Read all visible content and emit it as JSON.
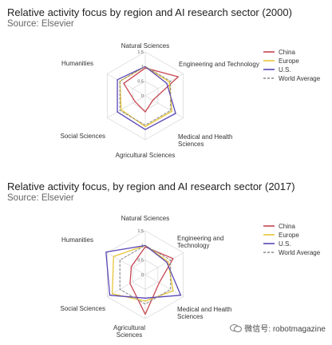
{
  "chart_data": [
    {
      "type": "radar",
      "title": "Relative activity focus by region and AI research sector (2000)",
      "source": "Source: Elsevier",
      "categories": [
        "Natural Sciences",
        "Engineering and Technology",
        "Medical and Health Sciences",
        "Agricultural Sciences",
        "Social Sciences",
        "Humanities"
      ],
      "category_lines": [
        [
          "Natural Sciences"
        ],
        [
          "Engineering and Technology"
        ],
        [
          "Medical and Health",
          "Sciences"
        ],
        [
          "Agricultural Sciences"
        ],
        [
          "Social Sciences"
        ],
        [
          "Humanities"
        ]
      ],
      "radial_ticks": [
        "0",
        "0.5",
        "1",
        "1.5"
      ],
      "rmax": 1.5,
      "series": [
        {
          "name": "China",
          "color": "#c8444f",
          "dash": false,
          "values": [
            0.95,
            1.3,
            0.3,
            0.55,
            0.4,
            0.85
          ]
        },
        {
          "name": "Europe",
          "color": "#e8c53a",
          "dash": false,
          "values": [
            1.0,
            0.95,
            1.05,
            1.05,
            0.95,
            1.0
          ]
        },
        {
          "name": "U.S.",
          "color": "#5a45b5",
          "dash": false,
          "values": [
            1.0,
            0.85,
            1.2,
            1.15,
            1.1,
            1.1
          ]
        },
        {
          "name": "World Average",
          "color": "#8a8a8a",
          "dash": true,
          "values": [
            1.0,
            1.0,
            1.0,
            1.0,
            1.0,
            1.0
          ]
        }
      ]
    },
    {
      "type": "radar",
      "title": "Relative activity focus, by region and AI research sector (2017)",
      "source": "Source: Elsevier",
      "categories": [
        "Natural Sciences",
        "Engineering and Technology",
        "Medical and Health Sciences",
        "Agricultural Sciences",
        "Social Sciences",
        "Humanities"
      ],
      "category_lines": [
        [
          "Natural Sciences"
        ],
        [
          "Engineering and",
          "Technology"
        ],
        [
          "Medical and Health",
          "Sciences"
        ],
        [
          "Agricultural",
          "Sciences"
        ],
        [
          "Social Sciences"
        ],
        [
          "Humanities"
        ]
      ],
      "radial_ticks": [
        "0",
        "0.5",
        "1",
        "1.5"
      ],
      "rmax": 1.5,
      "series": [
        {
          "name": "China",
          "color": "#c8444f",
          "dash": false,
          "values": [
            0.95,
            1.1,
            0.55,
            1.35,
            0.6,
            0.55
          ]
        },
        {
          "name": "Europe",
          "color": "#e8c53a",
          "dash": false,
          "values": [
            1.0,
            0.9,
            1.1,
            0.9,
            1.3,
            1.25
          ]
        },
        {
          "name": "U.S.",
          "color": "#5a45b5",
          "dash": false,
          "values": [
            1.0,
            0.85,
            1.4,
            0.8,
            1.4,
            1.55
          ]
        },
        {
          "name": "World Average",
          "color": "#8a8a8a",
          "dash": true,
          "values": [
            1.0,
            1.0,
            1.0,
            1.0,
            1.0,
            1.0
          ]
        }
      ]
    }
  ],
  "watermark": {
    "text": "微信号: robotmagazine"
  }
}
